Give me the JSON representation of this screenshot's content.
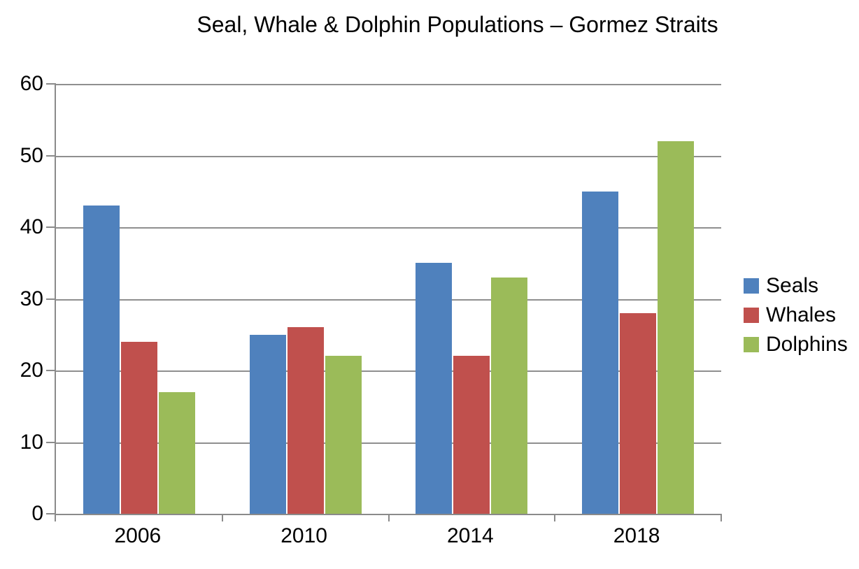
{
  "chart_data": {
    "type": "bar",
    "title": "Seal, Whale & Dolphin Populations – Gormez Straits",
    "categories": [
      "2006",
      "2010",
      "2014",
      "2018"
    ],
    "series": [
      {
        "name": "Seals",
        "color": "#4F81BD",
        "values": [
          43,
          25,
          35,
          45
        ]
      },
      {
        "name": "Whales",
        "color": "#C0504D",
        "values": [
          24,
          26,
          22,
          28
        ]
      },
      {
        "name": "Dolphins",
        "color": "#9BBB59",
        "values": [
          17,
          22,
          33,
          52
        ]
      }
    ],
    "ylim": [
      0,
      60
    ],
    "ytick_step": 10,
    "ytick_labels": [
      "0",
      "10",
      "20",
      "30",
      "40",
      "50",
      "60"
    ],
    "xlabel": "",
    "ylabel": "",
    "grid": true,
    "legend_position": "right"
  },
  "colors": {
    "background": "#FFFFFF",
    "gridline": "#8F8F8F",
    "axis": "#8A8A8A",
    "text": "#000000"
  }
}
